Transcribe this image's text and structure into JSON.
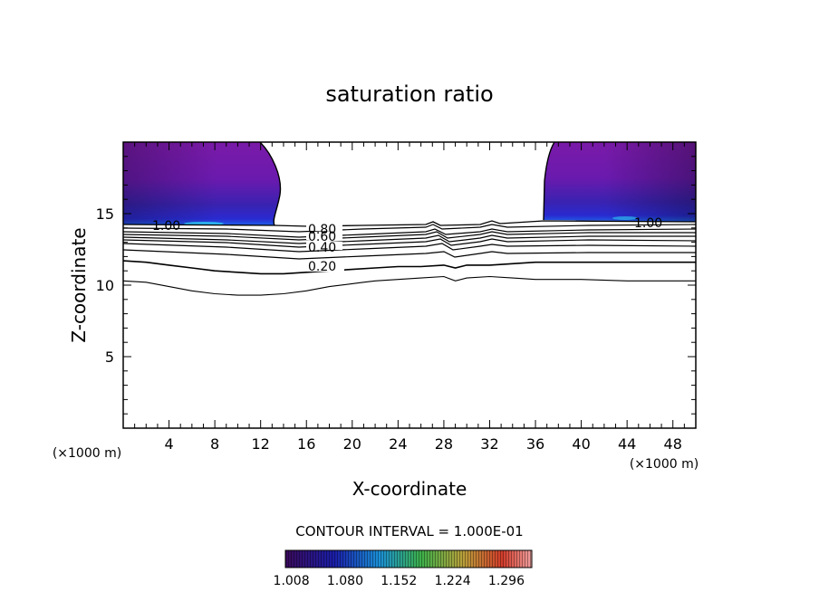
{
  "chart_data": {
    "type": "contour",
    "title": "saturation ratio",
    "xlabel": "X-coordinate",
    "ylabel": "Z-coordinate",
    "x_unit_left": "(×1000 m)",
    "x_unit_right": "(×1000 m)",
    "xlim": [
      0,
      50
    ],
    "ylim": [
      0,
      20
    ],
    "x_ticks": [
      4,
      8,
      12,
      16,
      20,
      24,
      28,
      32,
      36,
      40,
      44,
      48
    ],
    "y_ticks": [
      5,
      10,
      15
    ],
    "contour_interval_text": "CONTOUR INTERVAL = 1.000E-01",
    "contour_labels": [
      "1.00",
      "0.80",
      "0.60",
      "0.40",
      "0.20",
      "1.00"
    ],
    "colorbar_ticks": [
      "1.008",
      "1.080",
      "1.152",
      "1.224",
      "1.296"
    ],
    "colorbar_range": [
      1.0,
      1.33
    ],
    "shaded_regions": [
      {
        "name": "left supersaturated region",
        "x_range": [
          0,
          13.7
        ],
        "z_range": [
          14.2,
          20
        ]
      },
      {
        "name": "right supersaturated region",
        "x_range": [
          36.8,
          50
        ],
        "z_range": [
          14.5,
          20
        ]
      }
    ],
    "contours": [
      {
        "level": 0.2,
        "x": [
          0,
          2,
          4,
          6,
          8,
          10,
          12,
          14,
          16,
          18,
          20,
          22,
          24,
          26,
          28,
          29,
          30,
          32,
          34,
          36,
          40,
          44,
          48,
          50
        ],
        "z": [
          11.7,
          11.6,
          11.4,
          11.2,
          11.0,
          10.9,
          10.8,
          10.8,
          10.9,
          11.0,
          11.1,
          11.2,
          11.3,
          11.3,
          11.4,
          11.2,
          11.4,
          11.4,
          11.5,
          11.6,
          11.6,
          11.6,
          11.6,
          11.6
        ]
      },
      {
        "level": 0.1,
        "x": [
          0,
          2,
          4,
          6,
          8,
          10,
          12,
          14,
          16,
          18,
          20,
          21,
          22,
          24,
          26,
          28,
          29,
          30,
          32,
          34,
          36,
          40,
          44,
          48,
          50
        ],
        "z": [
          10.3,
          10.2,
          9.9,
          9.6,
          9.4,
          9.3,
          9.3,
          9.4,
          9.6,
          9.9,
          10.1,
          10.2,
          10.3,
          10.4,
          10.5,
          10.6,
          10.3,
          10.5,
          10.6,
          10.5,
          10.4,
          10.4,
          10.3,
          10.3,
          10.3
        ]
      }
    ]
  }
}
